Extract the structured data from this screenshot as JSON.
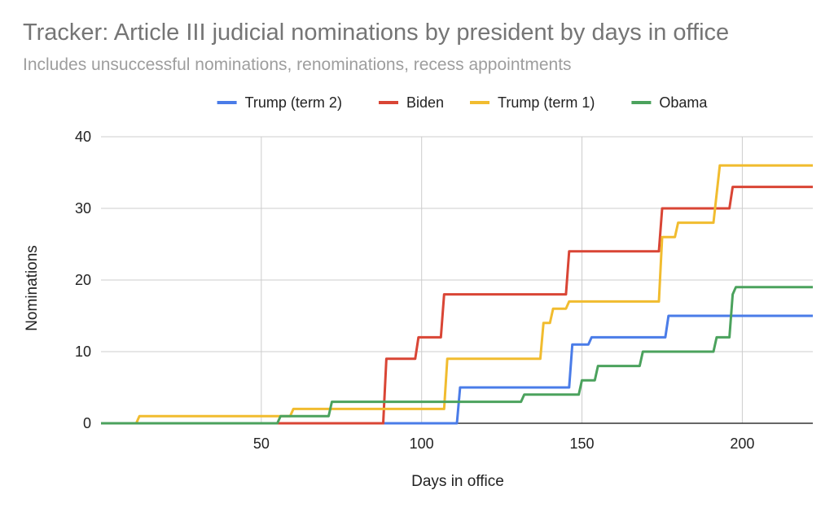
{
  "chart_data": {
    "type": "line",
    "title": "Tracker: Article III judicial nominations by president by days in office",
    "subtitle": "Includes unsuccessful nominations, renominations, recess appointments",
    "xlabel": "Days in office",
    "ylabel": "Nominations",
    "xlim": [
      0,
      222
    ],
    "ylim": [
      0,
      40
    ],
    "x_ticks": [
      50,
      100,
      150,
      200
    ],
    "y_ticks": [
      0,
      10,
      20,
      30,
      40
    ],
    "grid": true,
    "legend_position": "top",
    "series": [
      {
        "name": "Trump (term 2)",
        "color": "#4a7ce8",
        "points": [
          [
            0,
            0
          ],
          [
            111,
            0
          ],
          [
            112,
            5
          ],
          [
            146,
            5
          ],
          [
            147,
            11
          ],
          [
            152,
            11
          ],
          [
            153,
            12
          ],
          [
            176,
            12
          ],
          [
            177,
            15
          ],
          [
            222,
            15
          ]
        ]
      },
      {
        "name": "Biden",
        "color": "#d94535",
        "points": [
          [
            0,
            0
          ],
          [
            88,
            0
          ],
          [
            89,
            9
          ],
          [
            98,
            9
          ],
          [
            99,
            12
          ],
          [
            106,
            12
          ],
          [
            107,
            18
          ],
          [
            145,
            18
          ],
          [
            146,
            24
          ],
          [
            174,
            24
          ],
          [
            175,
            30
          ],
          [
            196,
            30
          ],
          [
            197,
            33
          ],
          [
            222,
            33
          ]
        ]
      },
      {
        "name": "Trump (term 1)",
        "color": "#f1bc2f",
        "points": [
          [
            0,
            0
          ],
          [
            11,
            0
          ],
          [
            12,
            1
          ],
          [
            59,
            1
          ],
          [
            60,
            2
          ],
          [
            107,
            2
          ],
          [
            108,
            9
          ],
          [
            137,
            9
          ],
          [
            138,
            14
          ],
          [
            140,
            14
          ],
          [
            141,
            16
          ],
          [
            145,
            16
          ],
          [
            146,
            17
          ],
          [
            174,
            17
          ],
          [
            175,
            26
          ],
          [
            179,
            26
          ],
          [
            180,
            28
          ],
          [
            191,
            28
          ],
          [
            193,
            36
          ],
          [
            222,
            36
          ]
        ]
      },
      {
        "name": "Obama",
        "color": "#4ba25d",
        "points": [
          [
            0,
            0
          ],
          [
            55,
            0
          ],
          [
            56,
            1
          ],
          [
            71,
            1
          ],
          [
            72,
            3
          ],
          [
            131,
            3
          ],
          [
            132,
            4
          ],
          [
            149,
            4
          ],
          [
            150,
            6
          ],
          [
            154,
            6
          ],
          [
            155,
            8
          ],
          [
            168,
            8
          ],
          [
            169,
            10
          ],
          [
            191,
            10
          ],
          [
            192,
            12
          ],
          [
            196,
            12
          ],
          [
            197,
            18
          ],
          [
            198,
            19
          ],
          [
            222,
            19
          ]
        ]
      }
    ]
  }
}
